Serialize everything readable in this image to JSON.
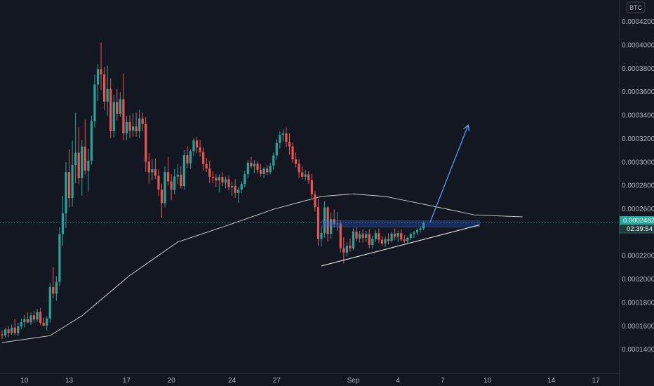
{
  "chart_data": {
    "type": "candlestick",
    "unit": "BTC",
    "grid": false,
    "ylim": [
      0.000129,
      0.000436
    ],
    "y_ticks": [
      "0.0004200",
      "0.0004000",
      "0.0003800",
      "0.0003600",
      "0.0003400",
      "0.0003200",
      "0.0003000",
      "0.0002800",
      "0.0002600",
      "0.0002200",
      "0.0002000",
      "0.0001800",
      "0.0001600",
      "0.0001400"
    ],
    "x_ticks": [
      "10",
      "13",
      "17",
      "20",
      "24",
      "27",
      "Sep",
      "4",
      "7",
      "10",
      "14",
      "17"
    ],
    "last_price": "0.0002482",
    "countdown": "02:39:54",
    "colors": {
      "background": "#131722",
      "up": "#26a69a",
      "down": "#ef5350",
      "moving_average": "#e6e6e6",
      "last_price": "#26a69a",
      "drawings": "#5b9cf0"
    },
    "candles": [
      [
        0.0001527,
        0.0001561,
        0.0001487,
        0.0001518
      ],
      [
        0.0001518,
        0.0001584,
        0.0001498,
        0.0001569
      ],
      [
        0.0001569,
        0.0001597,
        0.0001506,
        0.0001538
      ],
      [
        0.0001538,
        0.0001612,
        0.0001523,
        0.0001585
      ],
      [
        0.0001585,
        0.0001656,
        0.0001521,
        0.0001537
      ],
      [
        0.0001537,
        0.0001628,
        0.0001512,
        0.0001596
      ],
      [
        0.0001596,
        0.0001662,
        0.0001571,
        0.0001631
      ],
      [
        0.0001631,
        0.0001692,
        0.0001586,
        0.0001657
      ],
      [
        0.0001657,
        0.0001718,
        0.0001622,
        0.0001629
      ],
      [
        0.0001629,
        0.0001714,
        0.0001607,
        0.0001689
      ],
      [
        0.0001689,
        0.0001729,
        0.0001628,
        0.0001654
      ],
      [
        0.0001654,
        0.0001744,
        0.0001634,
        0.0001716
      ],
      [
        0.0001716,
        0.0001751,
        0.0001607,
        0.0001627
      ],
      [
        0.0001627,
        0.0001671,
        0.0001592,
        0.0001602
      ],
      [
        0.0001602,
        0.0001683,
        0.0001561,
        0.0001664
      ],
      [
        0.0001664,
        0.0001968,
        0.0001628,
        0.0001932
      ],
      [
        0.0001932,
        0.0002103,
        0.0001834,
        0.0001875
      ],
      [
        0.0001875,
        0.0002026,
        0.0001814,
        0.0001976
      ],
      [
        0.0001976,
        0.0002444,
        0.0001938,
        0.0002384
      ],
      [
        0.0002384,
        0.0002712,
        0.0002284,
        0.0002562
      ],
      [
        0.0002562,
        0.0002998,
        0.0002436,
        0.0002914
      ],
      [
        0.0002914,
        0.0003108,
        0.0002612,
        0.0002692
      ],
      [
        0.0002692,
        0.0003184,
        0.0002618,
        0.0002974
      ],
      [
        0.0002974,
        0.0003422,
        0.0002818,
        0.0003079
      ],
      [
        0.0003079,
        0.0003296,
        0.0002812,
        0.0002862
      ],
      [
        0.0002862,
        0.0003188,
        0.0002712,
        0.0003132
      ],
      [
        0.0003132,
        0.0003362,
        0.0002892,
        0.0002924
      ],
      [
        0.0002924,
        0.0003114,
        0.0002746,
        0.0003012
      ],
      [
        0.0003012,
        0.0003396,
        0.0002976,
        0.0003348
      ],
      [
        0.0003348,
        0.0003746,
        0.0003294,
        0.0003662
      ],
      [
        0.0003662,
        0.0003836,
        0.0003522,
        0.0003793
      ],
      [
        0.0003793,
        0.0004022,
        0.0003612,
        0.0003748
      ],
      [
        0.0003748,
        0.0003812,
        0.0003442,
        0.0003516
      ],
      [
        0.0003516,
        0.0003822,
        0.0003396,
        0.0003624
      ],
      [
        0.0003624,
        0.0003716,
        0.0003204,
        0.0003264
      ],
      [
        0.0003264,
        0.0003574,
        0.0003212,
        0.0003512
      ],
      [
        0.0003512,
        0.0003624,
        0.0003356,
        0.0003412
      ],
      [
        0.0003412,
        0.0003596,
        0.0003386,
        0.0003536
      ],
      [
        0.0003536,
        0.0003756,
        0.0003184,
        0.0003244
      ],
      [
        0.0003244,
        0.0003394,
        0.0003186,
        0.0003342
      ],
      [
        0.0003342,
        0.0003398,
        0.0003204,
        0.0003268
      ],
      [
        0.0003268,
        0.0003416,
        0.0003216,
        0.0003304
      ],
      [
        0.0003304,
        0.0003422,
        0.0003216,
        0.0003262
      ],
      [
        0.0003262,
        0.0003446,
        0.0003204,
        0.0003372
      ],
      [
        0.0003372,
        0.0003424,
        0.0003264,
        0.0003324
      ],
      [
        0.0003324,
        0.0003384,
        0.0002916,
        0.0003002
      ],
      [
        0.0003002,
        0.0003074,
        0.0002812,
        0.0002912
      ],
      [
        0.0002912,
        0.0003026,
        0.0002844,
        0.0002938
      ],
      [
        0.0002938,
        0.0003032,
        0.0002854,
        0.0002882
      ],
      [
        0.0002882,
        0.0002936,
        0.0002712,
        0.0002764
      ],
      [
        0.0002764,
        0.0002816,
        0.0002522,
        0.0002648
      ],
      [
        0.0002648,
        0.0002964,
        0.0002612,
        0.0002914
      ],
      [
        0.0002914,
        0.0003042,
        0.0002798,
        0.0002834
      ],
      [
        0.0002834,
        0.0002894,
        0.0002674,
        0.0002762
      ],
      [
        0.0002762,
        0.0002942,
        0.0002724,
        0.0002876
      ],
      [
        0.0002876,
        0.0002982,
        0.0002812,
        0.0002892
      ],
      [
        0.0002892,
        0.0002966,
        0.0002774,
        0.0002794
      ],
      [
        0.0002794,
        0.0003102,
        0.0002764,
        0.0003058
      ],
      [
        0.0003058,
        0.0003136,
        0.0002948,
        0.0002988
      ],
      [
        0.0002988,
        0.0003106,
        0.0002942,
        0.0003092
      ],
      [
        0.0003092,
        0.0003206,
        0.0003052,
        0.0003184
      ],
      [
        0.0003184,
        0.0003216,
        0.0003076,
        0.0003124
      ],
      [
        0.0003124,
        0.0003188,
        0.0003046,
        0.0003086
      ],
      [
        0.0003086,
        0.0003124,
        0.0002926,
        0.0002982
      ],
      [
        0.0002982,
        0.0003034,
        0.0002916,
        0.0002944
      ],
      [
        0.0002944,
        0.0003012,
        0.0002818,
        0.0002874
      ],
      [
        0.0002874,
        0.0002924,
        0.0002818,
        0.0002864
      ],
      [
        0.0002864,
        0.0002896,
        0.0002786,
        0.0002842
      ],
      [
        0.0002842,
        0.0002894,
        0.0002742,
        0.0002872
      ],
      [
        0.0002872,
        0.0002912,
        0.0002792,
        0.0002824
      ],
      [
        0.0002824,
        0.0002876,
        0.0002774,
        0.0002852
      ],
      [
        0.0002852,
        0.0002884,
        0.0002756,
        0.0002784
      ],
      [
        0.0002784,
        0.0002832,
        0.0002712,
        0.0002796
      ],
      [
        0.0002796,
        0.0002854,
        0.0002692,
        0.0002736
      ],
      [
        0.0002736,
        0.0002786,
        0.0002652,
        0.0002764
      ],
      [
        0.0002764,
        0.0002834,
        0.0002734,
        0.0002812
      ],
      [
        0.0002812,
        0.0002924,
        0.0002784,
        0.0002896
      ],
      [
        0.0002896,
        0.0003016,
        0.0002864,
        0.0002994
      ],
      [
        0.0002994,
        0.0003044,
        0.0002944,
        0.0002962
      ],
      [
        0.0002962,
        0.0003016,
        0.0002906,
        0.0002984
      ],
      [
        0.0002984,
        0.0003006,
        0.0002904,
        0.0002932
      ],
      [
        0.0002932,
        0.0002984,
        0.0002876,
        0.0002898
      ],
      [
        0.0002898,
        0.0002956,
        0.0002862,
        0.0002944
      ],
      [
        0.0002944,
        0.0002974,
        0.0002888,
        0.0002912
      ],
      [
        0.0002912,
        0.0002994,
        0.0002894,
        0.0002968
      ],
      [
        0.0002968,
        0.0003082,
        0.0002934,
        0.0003056
      ],
      [
        0.0003056,
        0.0003196,
        0.0003018,
        0.0003162
      ],
      [
        0.0003162,
        0.0003264,
        0.0003114,
        0.0003232
      ],
      [
        0.0003232,
        0.0003282,
        0.0003176,
        0.0003244
      ],
      [
        0.0003244,
        0.0003294,
        0.0003124,
        0.0003172
      ],
      [
        0.0003172,
        0.0003244,
        0.0003062,
        0.0003132
      ],
      [
        0.0003132,
        0.0003166,
        0.0002992,
        0.0003022
      ],
      [
        0.0003022,
        0.0003082,
        0.0002954,
        0.0002984
      ],
      [
        0.0002984,
        0.0003024,
        0.0002862,
        0.0002912
      ],
      [
        0.0002912,
        0.0002962,
        0.0002852,
        0.0002874
      ],
      [
        0.0002874,
        0.0002932,
        0.0002842,
        0.0002894
      ],
      [
        0.0002894,
        0.0002922,
        0.0002814,
        0.0002846
      ],
      [
        0.0002846,
        0.0002896,
        0.0002694,
        0.0002724
      ],
      [
        0.0002724,
        0.0002754,
        0.0002576,
        0.0002614
      ],
      [
        0.0002614,
        0.0002682,
        0.0002286,
        0.0002342
      ],
      [
        0.0002342,
        0.0002444,
        0.0002278,
        0.0002392
      ],
      [
        0.0002392,
        0.0002664,
        0.0002354,
        0.0002612
      ],
      [
        0.0002612,
        0.0002624,
        0.0002318,
        0.0002386
      ],
      [
        0.0002386,
        0.0002564,
        0.0002344,
        0.0002512
      ],
      [
        0.0002512,
        0.0002594,
        0.0002442,
        0.0002468
      ],
      [
        0.0002468,
        0.0002572,
        0.0002412,
        0.0002474
      ],
      [
        0.0002474,
        0.0002502,
        0.0002226,
        0.0002264
      ],
      [
        0.0002264,
        0.0002358,
        0.0002132,
        0.0002226
      ],
      [
        0.0002226,
        0.0002312,
        0.0002194,
        0.0002284
      ],
      [
        0.0002284,
        0.0002346,
        0.0002232,
        0.0002262
      ],
      [
        0.0002262,
        0.0002434,
        0.0002248,
        0.0002406
      ],
      [
        0.0002406,
        0.0002442,
        0.0002324,
        0.0002346
      ],
      [
        0.0002346,
        0.0002412,
        0.0002312,
        0.0002384
      ],
      [
        0.0002384,
        0.0002424,
        0.0002312,
        0.0002352
      ],
      [
        0.0002352,
        0.0002412,
        0.0002318,
        0.0002384
      ],
      [
        0.0002384,
        0.0002426,
        0.0002264,
        0.0002292
      ],
      [
        0.0002292,
        0.0002368,
        0.0002262,
        0.0002344
      ],
      [
        0.0002344,
        0.0002418,
        0.0002316,
        0.0002392
      ],
      [
        0.0002392,
        0.0002432,
        0.0002306,
        0.0002336
      ],
      [
        0.0002336,
        0.0002368,
        0.0002284,
        0.0002304
      ],
      [
        0.0002304,
        0.0002362,
        0.0002274,
        0.0002342
      ],
      [
        0.0002342,
        0.0002392,
        0.0002296,
        0.0002326
      ],
      [
        0.0002326,
        0.0002404,
        0.0002312,
        0.0002388
      ],
      [
        0.0002388,
        0.0002432,
        0.0002332,
        0.0002362
      ],
      [
        0.0002362,
        0.0002414,
        0.0002318,
        0.0002392
      ],
      [
        0.0002392,
        0.0002424,
        0.0002324,
        0.0002338
      ],
      [
        0.0002338,
        0.0002376,
        0.0002308,
        0.0002324
      ],
      [
        0.0002324,
        0.0002362,
        0.0002306,
        0.0002352
      ],
      [
        0.0002352,
        0.0002396,
        0.0002336,
        0.0002384
      ],
      [
        0.0002384,
        0.0002412,
        0.0002352,
        0.0002398
      ],
      [
        0.0002398,
        0.0002432,
        0.0002374,
        0.0002418
      ],
      [
        0.0002418,
        0.0002448,
        0.0002396,
        0.0002432
      ],
      [
        0.0002432,
        0.0002494,
        0.0002416,
        0.0002482
      ]
    ],
    "moving_average": [
      [
        0,
        0.0001457
      ],
      [
        15,
        0.0001516
      ],
      [
        25,
        0.0001686
      ],
      [
        40,
        0.0002031
      ],
      [
        55,
        0.0002316
      ],
      [
        70,
        0.0002453
      ],
      [
        85,
        0.0002596
      ],
      [
        100,
        0.0002706
      ],
      [
        110,
        0.0002727
      ],
      [
        120,
        0.0002706
      ],
      [
        132,
        0.0002639
      ],
      [
        148,
        0.0002548
      ],
      [
        163,
        0.0002531
      ]
    ],
    "annotations": {
      "triangle": {
        "upper": [
          [
            0.0002462,
            0.0002462
          ],
          [
            0.0002462,
            0.0002462
          ]
        ],
        "lower": [
          0.0002112,
          0.0002462
        ]
      },
      "resistance_zone": [
        0.0002445,
        0.0002497
      ],
      "projection_target": 0.0003316
    }
  }
}
